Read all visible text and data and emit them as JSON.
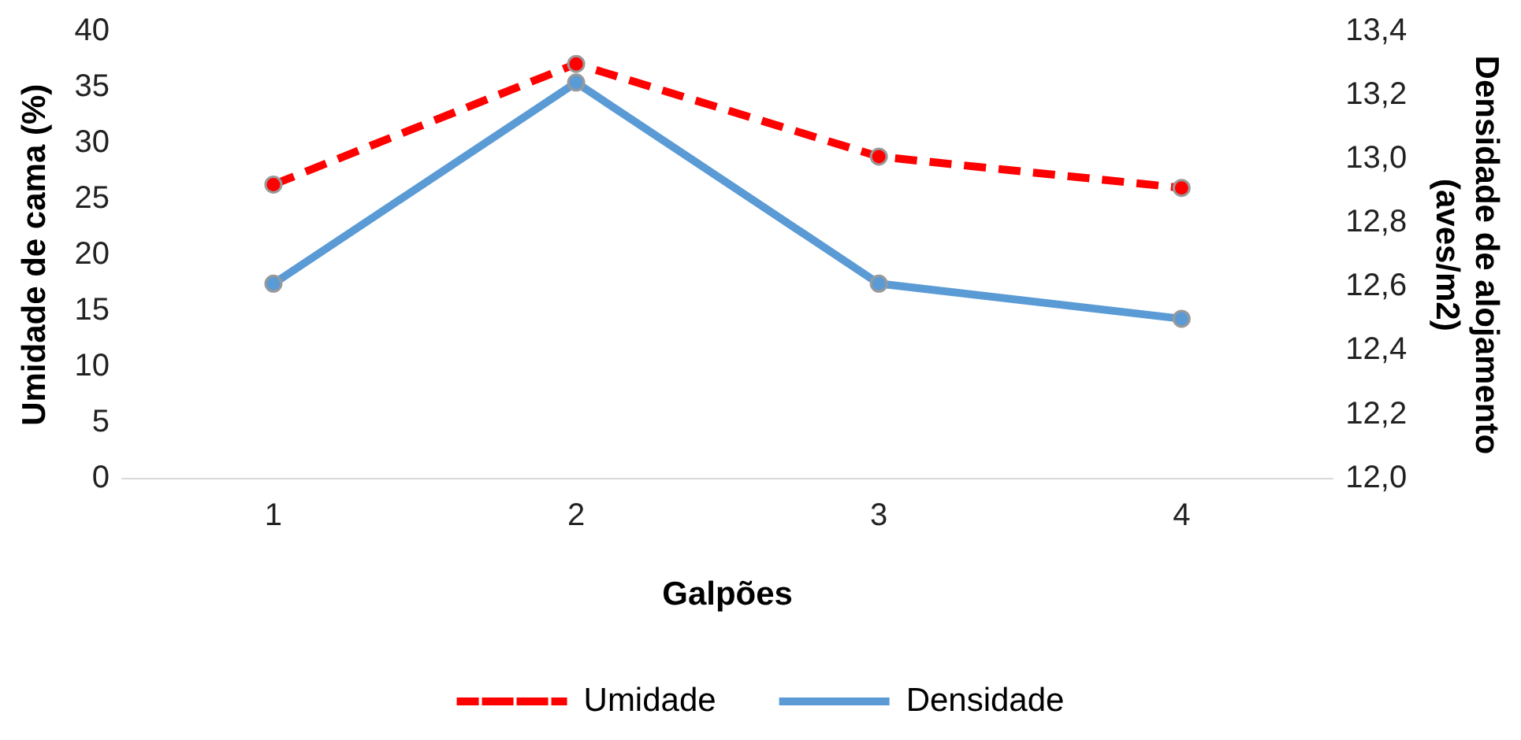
{
  "chart_data": {
    "type": "line",
    "xlabel": "Galpões",
    "ylabel": "Umidade de cama (%)",
    "y2label": "Densidade de alojamento\n(aves/m2)",
    "categories": [
      "1",
      "2",
      "3",
      "4"
    ],
    "series": [
      {
        "name": "Umidade",
        "color": "#ff0000",
        "line_style": "dashed",
        "values": [
          26.3,
          37.1,
          28.8,
          26.0
        ]
      },
      {
        "name": "Densidade",
        "color": "#5b9bd5",
        "line_style": "solid",
        "axis": "y2",
        "values": [
          12.61,
          13.24,
          12.61,
          12.5
        ]
      }
    ],
    "ylim": [
      0,
      40
    ],
    "yticks": [
      0,
      5,
      10,
      15,
      20,
      25,
      30,
      35,
      40
    ],
    "y2lim": [
      12.0,
      13.4
    ],
    "y2ticks": [
      {
        "value": 12.0,
        "label": "12,0"
      },
      {
        "value": 12.2,
        "label": "12,2"
      },
      {
        "value": 12.4,
        "label": "12,4"
      },
      {
        "value": 12.6,
        "label": "12,6"
      },
      {
        "value": 12.8,
        "label": "12,8"
      },
      {
        "value": 13.0,
        "label": "13,0"
      },
      {
        "value": 13.2,
        "label": "13,2"
      },
      {
        "value": 13.4,
        "label": "13,4"
      }
    ],
    "marker": "circle",
    "grid": false,
    "legend": "bottom"
  }
}
